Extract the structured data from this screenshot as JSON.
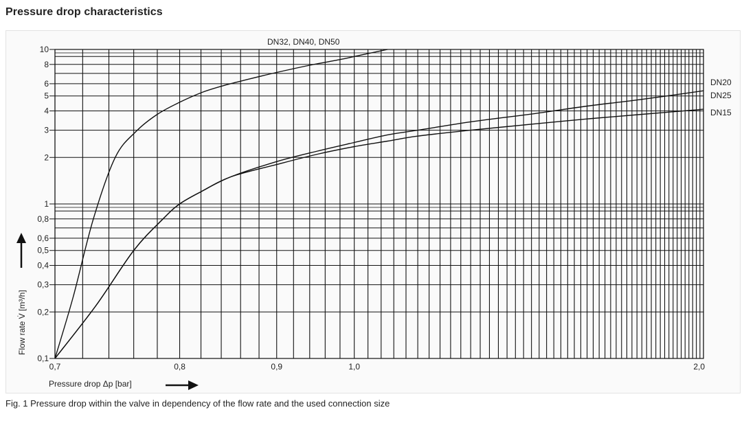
{
  "page": {
    "heading": "Pressure drop characteristics",
    "caption": "Fig. 1 Pressure drop within the valve in dependency of the flow rate and the used connection size"
  },
  "chart_data": {
    "type": "line",
    "xscale": "reciprocal",
    "yscale": "log",
    "xlim": [
      0.7,
      2.0
    ],
    "ylim": [
      0.1,
      10
    ],
    "grid": true,
    "xlabel": "Pressure drop Δp [bar]",
    "ylabel": "Flow rate V̇ [m³/h]",
    "x_ticks": [
      {
        "value": 0.7,
        "label": "0,7"
      },
      {
        "value": 0.8,
        "label": "0,8"
      },
      {
        "value": 0.9,
        "label": "0,9"
      },
      {
        "value": 1.0,
        "label": "1,0"
      },
      {
        "value": 2.0,
        "label": "2,0"
      }
    ],
    "y_ticks": [
      {
        "value": 0.1,
        "label": "0,1"
      },
      {
        "value": 0.2,
        "label": "0,2"
      },
      {
        "value": 0.3,
        "label": "0,3"
      },
      {
        "value": 0.4,
        "label": "0,4"
      },
      {
        "value": 0.5,
        "label": "0,5"
      },
      {
        "value": 0.6,
        "label": "0,6"
      },
      {
        "value": 0.8,
        "label": "0,8"
      },
      {
        "value": 1,
        "label": "1"
      },
      {
        "value": 2,
        "label": "2"
      },
      {
        "value": 3,
        "label": "3"
      },
      {
        "value": 4,
        "label": "4"
      },
      {
        "value": 5,
        "label": "5"
      },
      {
        "value": 6,
        "label": "6"
      },
      {
        "value": 8,
        "label": "8"
      },
      {
        "value": 10,
        "label": "10"
      }
    ],
    "series": [
      {
        "name": "DN32, DN40, DN50",
        "x": [
          0.7,
          0.713,
          0.728,
          0.745,
          0.762,
          0.78,
          0.8,
          0.822,
          0.845,
          0.87,
          0.9,
          0.94,
          0.98,
          1.01,
          1.05
        ],
        "y": [
          0.1,
          0.25,
          0.8,
          2.0,
          2.95,
          3.8,
          4.55,
          5.3,
          5.9,
          6.45,
          7.1,
          7.9,
          8.6,
          9.2,
          10.0
        ]
      },
      {
        "name": "DN20, DN25",
        "x": [
          0.7,
          0.73,
          0.76,
          0.785,
          0.8,
          0.82,
          0.85,
          0.9,
          0.95,
          1.0,
          1.05,
          1.1,
          1.2,
          1.35,
          1.5,
          1.7,
          2.0
        ],
        "y": [
          0.1,
          0.22,
          0.5,
          0.8,
          1.0,
          1.2,
          1.5,
          1.88,
          2.2,
          2.5,
          2.8,
          3.0,
          3.4,
          3.85,
          4.3,
          4.75,
          5.4
        ]
      },
      {
        "name": "DN15",
        "x": [
          0.7,
          0.73,
          0.76,
          0.785,
          0.8,
          0.82,
          0.85,
          0.9,
          0.95,
          1.0,
          1.05,
          1.1,
          1.2,
          1.35,
          1.5,
          1.7,
          2.0
        ],
        "y": [
          0.1,
          0.22,
          0.5,
          0.8,
          1.0,
          1.2,
          1.5,
          1.8,
          2.1,
          2.35,
          2.55,
          2.75,
          3.0,
          3.3,
          3.55,
          3.8,
          4.1
        ]
      }
    ],
    "curve_labels": [
      "DN32, DN40, DN50",
      "DN20",
      "DN25",
      "DN15"
    ]
  }
}
